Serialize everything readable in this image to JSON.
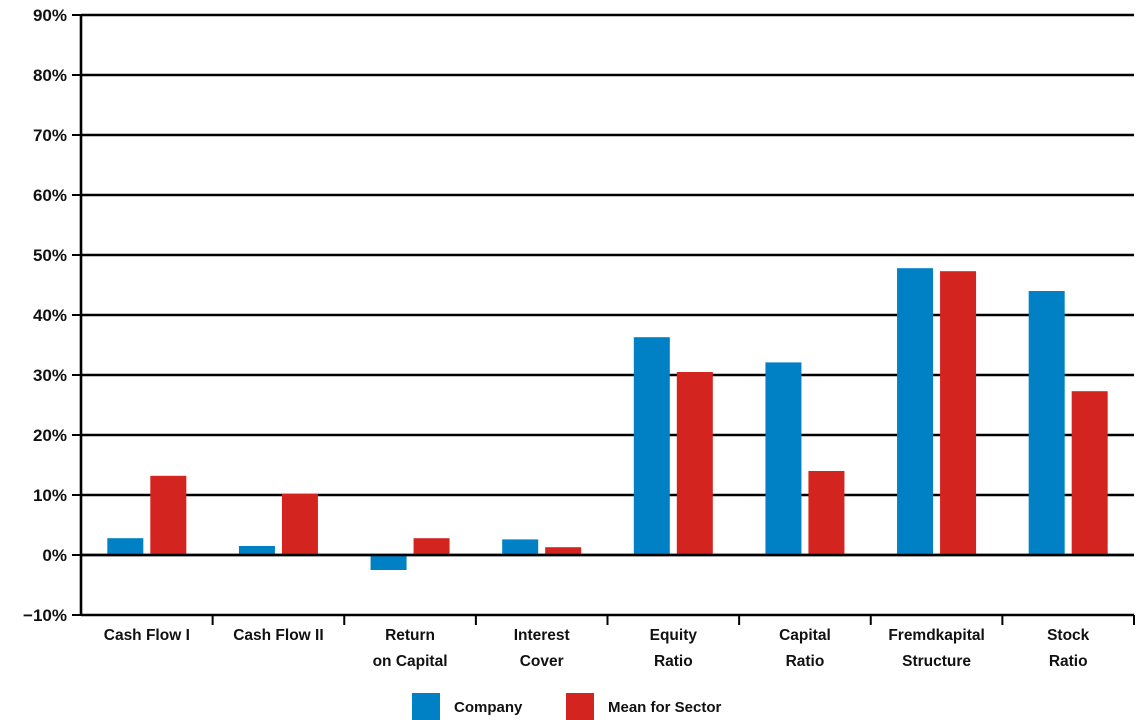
{
  "chart_data": {
    "type": "bar",
    "categories": [
      [
        "Cash Flow I"
      ],
      [
        "Cash Flow II"
      ],
      [
        "Return",
        "on Capital"
      ],
      [
        "Interest",
        "Cover"
      ],
      [
        "Equity",
        "Ratio"
      ],
      [
        "Capital",
        "Ratio"
      ],
      [
        "Fremdkapital",
        "Structure"
      ],
      [
        "Stock",
        "Ratio"
      ]
    ],
    "series": [
      {
        "name": "Company",
        "color": "#0080c5",
        "values": [
          2.8,
          1.5,
          -2.5,
          2.6,
          36.3,
          32.1,
          47.8,
          44.0
        ]
      },
      {
        "name": "Mean for Sector",
        "color": "#d42420",
        "values": [
          13.2,
          10.2,
          2.8,
          1.3,
          30.5,
          14.0,
          47.3,
          27.3
        ]
      }
    ],
    "y_ticks": [
      "90%",
      "80%",
      "70%",
      "60%",
      "50%",
      "40%",
      "30%",
      "20%",
      "10%",
      "0%",
      "−10%"
    ],
    "ylim": [
      -10,
      90
    ],
    "y_step": 10,
    "grid": true,
    "legend_position": "bottom-center"
  }
}
